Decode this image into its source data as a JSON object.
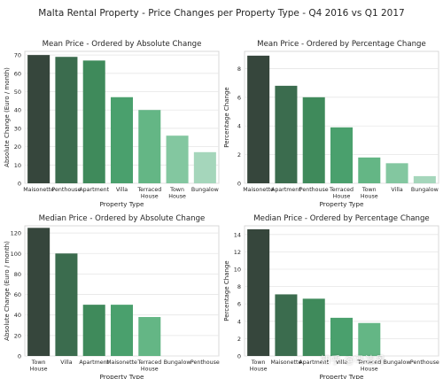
{
  "suptitle": "Malta Rental Property - Price Changes per Property Type - Q4 2016 vs Q1 2017",
  "watermark": "知乎 @马洁丹",
  "chart_data": [
    {
      "type": "bar",
      "title": "Mean Price - Ordered by Absolute Change",
      "xlabel": "Property Type",
      "ylabel": "Absolute Change (Euro / month)",
      "categories": [
        "Maisonette",
        "Penthouse",
        "Apartment",
        "Villa",
        "Terraced House",
        "Town House",
        "Bungalow"
      ],
      "values": [
        70,
        69,
        67,
        47,
        40,
        26,
        17
      ],
      "ylim": [
        0,
        72
      ],
      "yticks": [
        0,
        10,
        20,
        30,
        40,
        50,
        60,
        70
      ],
      "grid": true
    },
    {
      "type": "bar",
      "title": "Mean Price - Ordered by Percentage Change",
      "xlabel": "Property Type",
      "ylabel": "Percentage Change",
      "categories": [
        "Maisonette",
        "Apartment",
        "Penthouse",
        "Terraced House",
        "Town House",
        "Villa",
        "Bungalow"
      ],
      "values": [
        8.9,
        6.8,
        6.0,
        3.9,
        1.8,
        1.4,
        0.5
      ],
      "ylim": [
        0,
        9.2
      ],
      "yticks": [
        0,
        2,
        4,
        6,
        8
      ],
      "grid": true
    },
    {
      "type": "bar",
      "title": "Median Price - Ordered by Absolute Change",
      "xlabel": "Property Type",
      "ylabel": "Absolute Change (Euro / month)",
      "categories": [
        "Town House",
        "Villa",
        "Apartment",
        "Maisonette",
        "Terraced House",
        "Bungalow",
        "Penthouse"
      ],
      "values": [
        125,
        100,
        50,
        50,
        38,
        0,
        0
      ],
      "ylim": [
        0,
        127
      ],
      "yticks": [
        0,
        20,
        40,
        60,
        80,
        100,
        120
      ],
      "grid": true
    },
    {
      "type": "bar",
      "title": "Median Price - Ordered by Percentage Change",
      "xlabel": "Property Type",
      "ylabel": "Percentage Change",
      "categories": [
        "Town House",
        "Maisonette",
        "Apartment",
        "Villa",
        "Terraced House",
        "Bungalow",
        "Penthouse"
      ],
      "values": [
        14.6,
        7.1,
        6.6,
        4.4,
        3.8,
        0,
        0
      ],
      "ylim": [
        0,
        15
      ],
      "yticks": [
        0,
        2,
        4,
        6,
        8,
        10,
        12,
        14
      ],
      "grid": true
    }
  ],
  "colors": {
    "bars": [
      "#36463c",
      "#3b6c4e",
      "#3f8a5b",
      "#4aa06d",
      "#64b685",
      "#83c7a0",
      "#a5d6bb"
    ],
    "grid": "#e6e6e6",
    "axis": "#cfcfcf",
    "text": "#262626"
  }
}
